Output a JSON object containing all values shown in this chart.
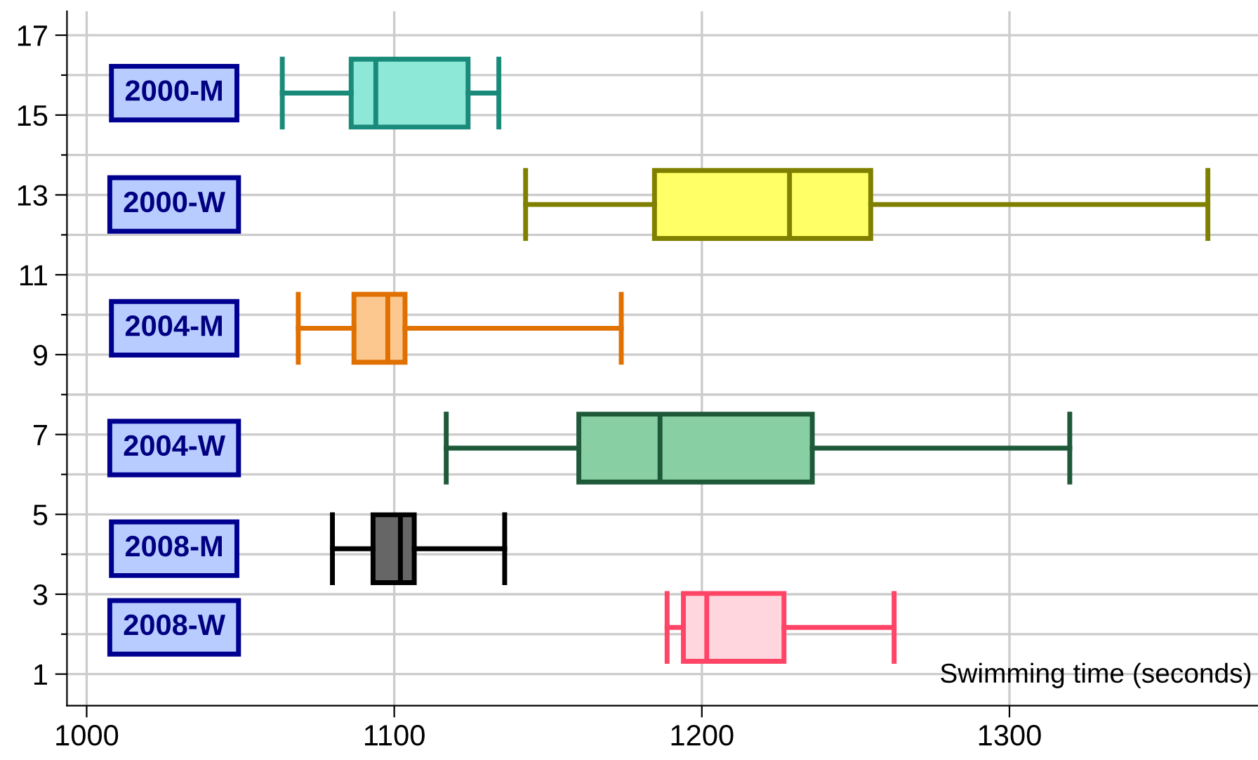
{
  "chart_data": {
    "type": "box",
    "orientation": "horizontal",
    "xlabel": "Swimming time (seconds)",
    "xlim": [
      993.6,
      1380.8
    ],
    "xticks": [
      1000,
      1100,
      1200,
      1300
    ],
    "ylim": [
      0.21,
      17.6
    ],
    "yticks": [
      1,
      {
        "value": 2,
        "label": null
      },
      3,
      {
        "value": 4,
        "label": null
      },
      5,
      {
        "value": 6,
        "label": null
      },
      7,
      {
        "value": 8,
        "label": null
      },
      9,
      {
        "value": 10,
        "label": null
      },
      11,
      {
        "value": 12,
        "label": null
      },
      13,
      {
        "value": 14,
        "label": null
      },
      15,
      {
        "value": 16,
        "label": null
      },
      17
    ],
    "grid": true,
    "annotations": [
      "2000-M",
      "2000-W",
      "2004-M",
      "2004-W",
      "2008-M",
      "2008-W"
    ],
    "series": [
      {
        "color": "#1a8a7a",
        "colors": [
          "#8de8d8"
        ],
        "x": [
          15.55
        ],
        "boxes": [
          {
            "low": 1063.6,
            "q1": 1086,
            "median": 1094,
            "q3": 1124,
            "high": 1134
          }
        ]
      },
      {
        "color": "#808000",
        "colors": [
          "#ffff66"
        ],
        "x": [
          12.76
        ],
        "boxes": [
          {
            "low": 1142.7,
            "q1": 1184.6,
            "median": 1228.5,
            "q3": 1254.9,
            "high": 1364.5
          }
        ]
      },
      {
        "color": "#e07000",
        "colors": [
          "#fcc890"
        ],
        "x": [
          9.66
        ],
        "boxes": [
          {
            "low": 1068.8,
            "q1": 1086.9,
            "median": 1097.9,
            "q3": 1103.5,
            "high": 1173.8
          }
        ]
      },
      {
        "color": "#1e5a3a",
        "colors": [
          "#88d0a4"
        ],
        "x": [
          6.66
        ],
        "boxes": [
          {
            "low": 1116.9,
            "q1": 1160,
            "median": 1186.4,
            "q3": 1235.9,
            "high": 1319.6
          }
        ]
      },
      {
        "color": "#000000",
        "colors": [
          "#666666"
        ],
        "x": [
          4.14
        ],
        "boxes": [
          {
            "low": 1079.9,
            "q1": 1093.1,
            "median": 1102,
            "q3": 1106.5,
            "high": 1135.9
          }
        ]
      },
      {
        "color": "#ff4466",
        "colors": [
          "#ffd6de"
        ],
        "x": [
          2.17
        ],
        "boxes": [
          {
            "low": 1188.7,
            "q1": 1194,
            "median": 1201.6,
            "q3": 1226.7,
            "high": 1262.5
          }
        ]
      }
    ]
  }
}
